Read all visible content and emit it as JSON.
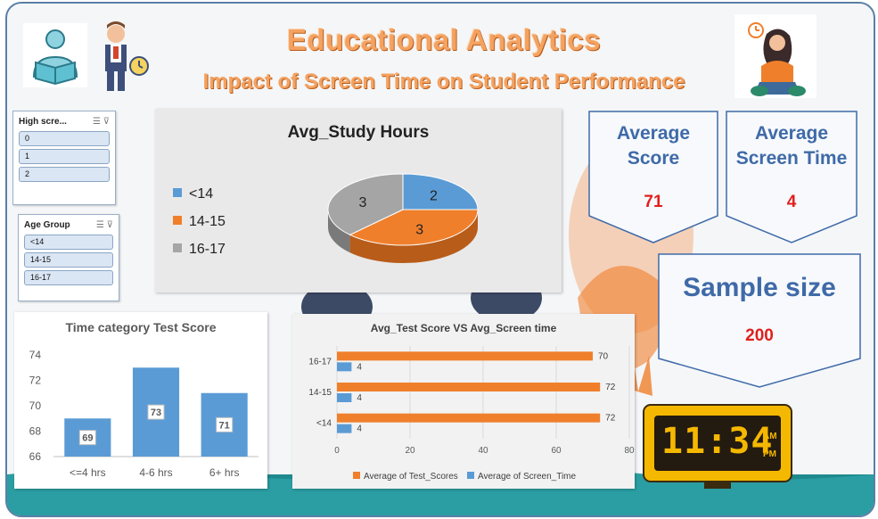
{
  "header": {
    "title": "Educational Analytics",
    "subtitle": "Impact of Screen Time on Student Performance"
  },
  "slicers": {
    "high_score": {
      "title": "High scre...",
      "items": [
        "0",
        "1",
        "2"
      ]
    },
    "age_group": {
      "title": "Age Group",
      "items": [
        "<14",
        "14-15",
        "16-17"
      ]
    }
  },
  "kpis": {
    "average_score": {
      "label_line1": "Average",
      "label_line2": "Score",
      "value": "71"
    },
    "average_screen_time": {
      "label_line1": "Average",
      "label_line2": "Screen Time",
      "value": "4"
    },
    "sample_size": {
      "label": "Sample size",
      "value": "200"
    }
  },
  "clock": {
    "display": "11:34",
    "am": "AM",
    "pm": "PM"
  },
  "colors": {
    "orange": "#f07f2b",
    "blue": "#5b9bd5",
    "gray": "#a5a5a5",
    "kpi_blue": "#3f6aa8",
    "kpi_red": "#e0201c"
  },
  "chart_data": [
    {
      "type": "pie",
      "title": "Avg_Study Hours",
      "categories": [
        "<14",
        "14-15",
        "16-17"
      ],
      "values": [
        2,
        3,
        3
      ],
      "legend": "left"
    },
    {
      "type": "bar",
      "title": "Time category Test Score",
      "categories": [
        "<=4 hrs",
        "4-6 hrs",
        "6+ hrs"
      ],
      "values": [
        69,
        73,
        71
      ],
      "ylim": [
        66,
        74
      ],
      "yticks": [
        66,
        68,
        70,
        72,
        74
      ]
    },
    {
      "type": "bar",
      "orientation": "horizontal",
      "title": "Avg_Test Score VS Avg_Screen time",
      "categories": [
        "16-17",
        "14-15",
        "<14"
      ],
      "series": [
        {
          "name": "Average of Test_Scores",
          "values": [
            70,
            72,
            72
          ]
        },
        {
          "name": "Average of Screen_Time",
          "values": [
            4,
            4,
            4
          ]
        }
      ],
      "xlim": [
        0,
        80
      ],
      "xticks": [
        0,
        20,
        40,
        60,
        80
      ],
      "legend": "bottom"
    }
  ]
}
